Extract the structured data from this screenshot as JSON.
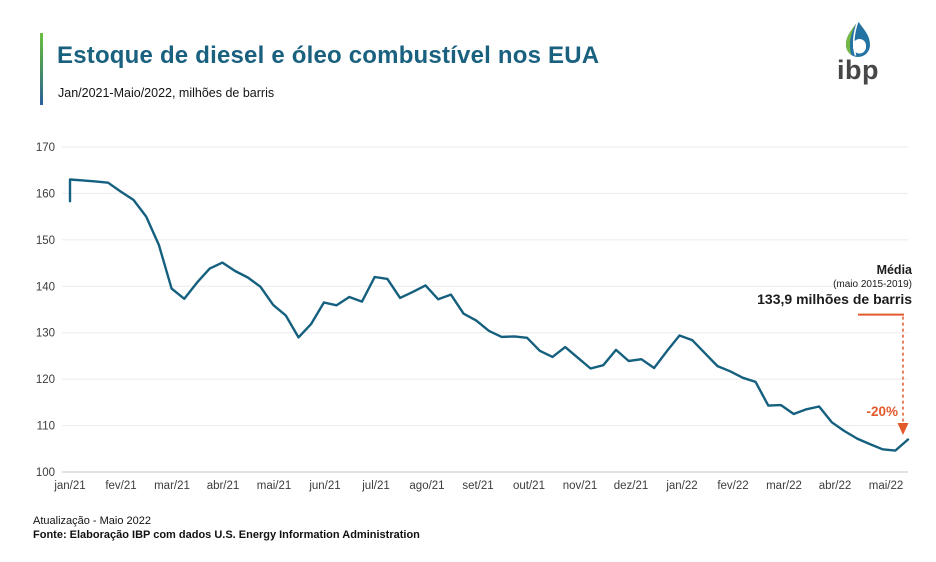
{
  "header": {
    "title": "Estoque de diesel e óleo combustível nos EUA",
    "subtitle": "Jan/2021-Maio/2022, milhões de barris"
  },
  "logo": {
    "text": "ibp"
  },
  "chart_data": {
    "type": "line",
    "title": "Estoque de diesel e óleo combustível nos EUA",
    "subtitle": "Jan/2021-Maio/2022, milhões de barris",
    "ylabel": "milhões de barris",
    "ylim": [
      100,
      170
    ],
    "grid": true,
    "y_ticks": [
      170,
      160,
      150,
      140,
      130,
      120,
      110,
      100
    ],
    "x_tick_labels": [
      "jan/21",
      "fev/21",
      "mar/21",
      "abr/21",
      "mai/21",
      "jun/21",
      "jul/21",
      "ago/21",
      "set/21",
      "out/21",
      "nov/21",
      "dez/21",
      "jan/22",
      "fev/22",
      "mar/22",
      "abr/22",
      "mai/22"
    ],
    "series": [
      {
        "name": "Estoque de diesel e óleo combustível nos EUA (semanal)",
        "color": "#15607f",
        "values_weekly": [
          158.3,
          163.0,
          162.8,
          162.6,
          162.3,
          160.4,
          158.6,
          155.0,
          148.9,
          139.5,
          137.3,
          140.8,
          143.8,
          145.1,
          143.3,
          141.9,
          139.9,
          136.0,
          133.7,
          129.0,
          131.9,
          136.5,
          135.9,
          137.7,
          136.7,
          142.0,
          141.6,
          137.5,
          138.8,
          140.2,
          137.2,
          138.2,
          134.1,
          132.6,
          130.4,
          129.1,
          129.2,
          128.9,
          126.1,
          124.8,
          126.9,
          124.6,
          122.3,
          123.0,
          126.3,
          123.9,
          124.3,
          122.4,
          126.0,
          129.4,
          128.4,
          125.6,
          122.8,
          121.7,
          120.3,
          119.4,
          114.3,
          114.4,
          112.5,
          113.5,
          114.1,
          110.7,
          108.8,
          107.2,
          106.0,
          104.9,
          104.6,
          107.0
        ]
      }
    ],
    "annotation": {
      "label": "Média",
      "sublabel": "(maio 2015-2019)",
      "value_label": "133,9 milhões de barris",
      "value": 133.9,
      "drop_label": "-20%",
      "color": "#e2592c"
    },
    "colors": {
      "grid": "#ebebeb",
      "axis": "#c4c4c4",
      "tick_text": "#3c3c3c"
    }
  },
  "footer": {
    "line1": "Atualização - Maio 2022",
    "line2": "Fonte: Elaboração IBP com dados U.S. Energy Information Administration"
  }
}
